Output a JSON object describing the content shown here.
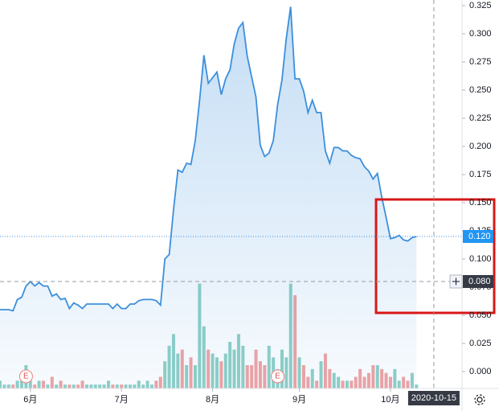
{
  "chart_data": {
    "type": "line",
    "series": [
      {
        "color": "#3b8fdc",
        "values": [
          0.055,
          0.055,
          0.055,
          0.054,
          0.064,
          0.066,
          0.076,
          0.08,
          0.076,
          0.079,
          0.076,
          0.076,
          0.067,
          0.069,
          0.064,
          0.065,
          0.056,
          0.061,
          0.059,
          0.056,
          0.06,
          0.06,
          0.06,
          0.06,
          0.06,
          0.06,
          0.056,
          0.06,
          0.056,
          0.056,
          0.06,
          0.06,
          0.063,
          0.064,
          0.064,
          0.064,
          0.063,
          0.059,
          0.1,
          0.104,
          0.144,
          0.179,
          0.177,
          0.185,
          0.184,
          0.205,
          0.241,
          0.281,
          0.256,
          0.261,
          0.266,
          0.246,
          0.26,
          0.268,
          0.291,
          0.305,
          0.31,
          0.28,
          0.262,
          0.244,
          0.201,
          0.191,
          0.194,
          0.205,
          0.237,
          0.259,
          0.296,
          0.324,
          0.26,
          0.26,
          0.249,
          0.23,
          0.241,
          0.23,
          0.23,
          0.196,
          0.185,
          0.199,
          0.199,
          0.196,
          0.196,
          0.192,
          0.19,
          0.189,
          0.182,
          0.178,
          0.171,
          0.176,
          0.155,
          0.137,
          0.118,
          0.119,
          0.121,
          0.117,
          0.116,
          0.119,
          0.12
        ]
      },
      {
        "type": "bar",
        "axis": "y2",
        "up_color": "#8fd0c6",
        "down_color": "#f1a3a3",
        "values": [
          2,
          1,
          1,
          1,
          2,
          2,
          6,
          2,
          1,
          2,
          2,
          1,
          3,
          1,
          2,
          1,
          1,
          1,
          1,
          2,
          1,
          1,
          1,
          1,
          1,
          2,
          1,
          1,
          1,
          1,
          1,
          1,
          2,
          1,
          2,
          1,
          2,
          3,
          7,
          11,
          14,
          9,
          10,
          6,
          8,
          6,
          27,
          16,
          10,
          9,
          8,
          7,
          9,
          12,
          10,
          14,
          11,
          6,
          6,
          10,
          7,
          6,
          11,
          8,
          5,
          10,
          8,
          27,
          24,
          8,
          6,
          3,
          5,
          2,
          7,
          9,
          5,
          4,
          3,
          2,
          2,
          2,
          3,
          5,
          3,
          4,
          6,
          6,
          5,
          4,
          3,
          5,
          2,
          3,
          2,
          4,
          1
        ]
      }
    ],
    "xlim": [
      0,
      106.5
    ],
    "xticks": [
      {
        "value": 7,
        "label": "6月"
      },
      {
        "value": 28,
        "label": "7月"
      },
      {
        "value": 49,
        "label": "8月"
      },
      {
        "value": 69,
        "label": "9月"
      },
      {
        "value": 90,
        "label": "10月"
      }
    ],
    "ylim": [
      -0.015,
      0.33
    ],
    "yticks": [
      {
        "value": 0,
        "label": "0.000"
      },
      {
        "value": 0.025,
        "label": "0.025"
      },
      {
        "value": 0.05,
        "label": "0.050"
      },
      {
        "value": 0.075,
        "label": "0.075"
      },
      {
        "value": 0.1,
        "label": "0.100"
      },
      {
        "value": 0.125,
        "label": "0.125"
      },
      {
        "value": 0.15,
        "label": "0.150"
      },
      {
        "value": 0.175,
        "label": "0.175"
      },
      {
        "value": 0.2,
        "label": "0.200"
      },
      {
        "value": 0.225,
        "label": "0.225"
      },
      {
        "value": 0.25,
        "label": "0.250"
      },
      {
        "value": 0.275,
        "label": "0.275"
      },
      {
        "value": 0.3,
        "label": "0.300"
      },
      {
        "value": 0.325,
        "label": "0.325"
      }
    ],
    "y2lim": [
      0,
      100
    ],
    "last_price": {
      "value": 0.12,
      "label": "0.120"
    },
    "crosshair": {
      "x": 100,
      "date": "2020-10-15",
      "price": {
        "value": 0.08,
        "label": "0.080"
      }
    },
    "events": [
      {
        "x": 6,
        "label": "E"
      },
      {
        "x": 64,
        "label": "E"
      }
    ]
  }
}
